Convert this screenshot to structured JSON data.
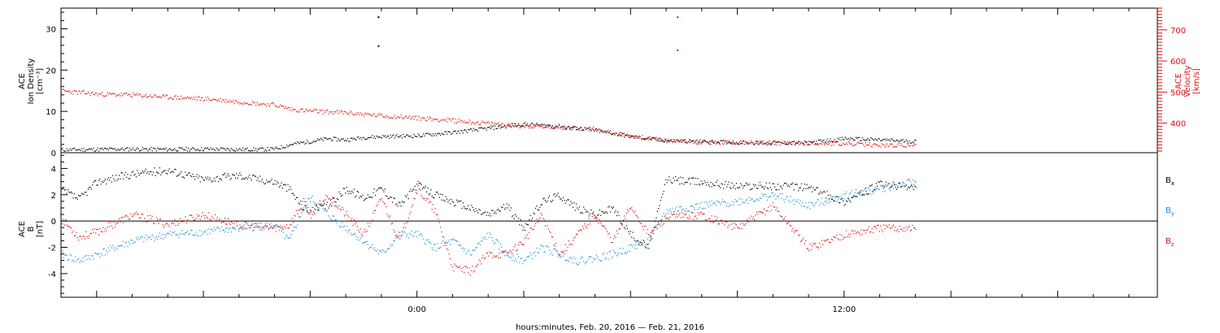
{
  "chart_data": [
    {
      "type": "scatter",
      "panel": "ace-density-velocity",
      "left_axis": {
        "label_lines": [
          "ACE",
          "Ion Density",
          "[cm⁻³]"
        ],
        "ylim": [
          0,
          35
        ],
        "ticks": [
          "0",
          "10",
          "20",
          "30"
        ]
      },
      "right_axis": {
        "label_lines": [
          "ACE",
          "Velocity",
          "[km/s]"
        ],
        "ylim": [
          305,
          770
        ],
        "ticks": [
          "400",
          "500",
          "600",
          "700"
        ],
        "color": "#e01010"
      },
      "series": [
        {
          "color": "#000000",
          "axis": "left",
          "x": [
            -10,
            -9,
            -8,
            -7,
            -6,
            -5,
            -4.5,
            -4,
            -3.5,
            -3,
            -2.5,
            -2,
            -1.5,
            -1,
            0,
            1,
            2,
            3,
            4,
            5,
            6,
            7,
            8,
            9,
            10,
            11,
            12,
            13,
            14
          ],
          "y": [
            0.8,
            0.9,
            1.0,
            0.9,
            1.0,
            0.9,
            0.9,
            1.0,
            2.2,
            2.8,
            3.5,
            3.2,
            3.8,
            4.0,
            4.2,
            5.0,
            6.0,
            7.0,
            6.5,
            5.5,
            4.0,
            3.0,
            2.8,
            2.6,
            2.4,
            2.5,
            3.5,
            3.2,
            2.8
          ]
        },
        {
          "color": "#e01010",
          "axis": "right",
          "x": [
            -10,
            -9,
            -8,
            -7,
            -6,
            -5,
            -4,
            -3.5,
            -3,
            -2,
            -1,
            0,
            1,
            2,
            3,
            4,
            5,
            6,
            7,
            8,
            9,
            10,
            11,
            12,
            13,
            14
          ],
          "y": [
            505,
            495,
            492,
            485,
            480,
            470,
            460,
            445,
            440,
            435,
            425,
            418,
            410,
            400,
            392,
            388,
            382,
            360,
            345,
            340,
            338,
            338,
            337,
            335,
            330,
            330
          ]
        }
      ],
      "outliers": [
        {
          "color": "#000000",
          "x": -1.1,
          "y": 33.0
        },
        {
          "color": "#000000",
          "x": -1.1,
          "y": 26.0
        },
        {
          "color": "#e01010",
          "x": 7.3,
          "y": 33.0
        },
        {
          "color": "#e01010",
          "x": 7.3,
          "y": 25.0
        }
      ]
    },
    {
      "type": "scatter",
      "panel": "ace-b",
      "y_axis": {
        "label_lines": [
          "ACE",
          "B",
          "[nT]"
        ],
        "ylim": [
          -5.8,
          5.2
        ],
        "ticks": [
          "-4",
          "-2",
          "0",
          "2",
          "4"
        ]
      },
      "zero_line": true,
      "legend": [
        {
          "label": "B",
          "sub": "x",
          "color": "#000000"
        },
        {
          "label": "B",
          "sub": "y",
          "color": "#1f8fd8"
        },
        {
          "label": "B",
          "sub": "z",
          "color": "#e01010"
        }
      ],
      "series": [
        {
          "name": "Bx",
          "color": "#000000",
          "x": [
            -10,
            -9.5,
            -9,
            -8,
            -7,
            -6,
            -5,
            -4,
            -3.6,
            -3.2,
            -3,
            -2.5,
            -2,
            -1.5,
            -1,
            -0.5,
            0,
            0.5,
            1,
            1.5,
            2,
            2.5,
            3,
            3.5,
            4,
            4.5,
            5,
            5.5,
            6,
            6.5,
            7,
            8,
            9,
            10,
            11,
            12,
            13,
            14
          ],
          "y": [
            2.4,
            1.7,
            3.0,
            3.6,
            3.9,
            3.2,
            3.5,
            3.0,
            2.5,
            1.0,
            0.8,
            1.2,
            2.5,
            1.8,
            2.5,
            1.2,
            2.8,
            2.0,
            1.5,
            1.0,
            0.5,
            1.2,
            -0.5,
            1.5,
            2.0,
            1.0,
            0.5,
            1.0,
            -1.0,
            -2.0,
            3.2,
            3.0,
            2.7,
            2.7,
            2.6,
            1.5,
            2.8,
            2.6
          ]
        },
        {
          "name": "By",
          "color": "#1f8fd8",
          "x": [
            -10,
            -9.5,
            -9,
            -8,
            -7,
            -6,
            -5,
            -4,
            -3.6,
            -3.2,
            -3,
            -2.5,
            -2,
            -1.5,
            -1,
            -0.5,
            0,
            0.5,
            1,
            1.5,
            2,
            2.5,
            3,
            3.5,
            4,
            4.5,
            5,
            5.5,
            6,
            6.5,
            7,
            8,
            9,
            10,
            11,
            12,
            13,
            14
          ],
          "y": [
            -2.5,
            -3.0,
            -2.5,
            -1.5,
            -1.0,
            -0.8,
            -0.5,
            -0.3,
            -1.5,
            1.0,
            1.8,
            0.5,
            -0.5,
            -1.5,
            -2.5,
            -1.0,
            -1.0,
            -2.0,
            -1.5,
            -2.5,
            -1.0,
            -2.5,
            -3.0,
            -2.0,
            -2.5,
            -3.0,
            -2.8,
            -2.5,
            -2.0,
            -1.5,
            0.8,
            1.2,
            1.5,
            2.0,
            1.2,
            2.0,
            2.5,
            3.0
          ]
        },
        {
          "name": "Bz",
          "color": "#e01010",
          "x": [
            -10,
            -9.5,
            -9,
            -8,
            -7,
            -6,
            -5,
            -4,
            -3.6,
            -3.2,
            -3,
            -2.5,
            -2,
            -1.5,
            -1,
            -0.5,
            0,
            0.5,
            1,
            1.5,
            2,
            2.5,
            3,
            3.5,
            4,
            4.5,
            5,
            5.5,
            6,
            6.5,
            7,
            8,
            9,
            10,
            11,
            12,
            13,
            14
          ],
          "y": [
            0.2,
            -1.2,
            -0.8,
            0.5,
            -0.2,
            0.5,
            -0.3,
            -0.5,
            -0.3,
            1.5,
            0.5,
            2.0,
            0.5,
            -1.0,
            1.8,
            -1.5,
            2.5,
            0.8,
            -3.5,
            -3.8,
            -2.5,
            -2.5,
            -1.5,
            0.5,
            -2.5,
            -1.0,
            0.5,
            -1.5,
            1.2,
            -1.0,
            0.3,
            0.5,
            -0.5,
            1.2,
            -2.0,
            -1.0,
            -0.5,
            -0.5
          ]
        }
      ]
    }
  ],
  "x_axis": {
    "label": "hours:minutes, Feb. 20, 2016 — Feb. 21, 2016",
    "xlim": [
      -10,
      20.8
    ],
    "tick_labels": [
      {
        "x": 0,
        "text": "0:00"
      },
      {
        "x": 12,
        "text": "12:00"
      }
    ]
  }
}
